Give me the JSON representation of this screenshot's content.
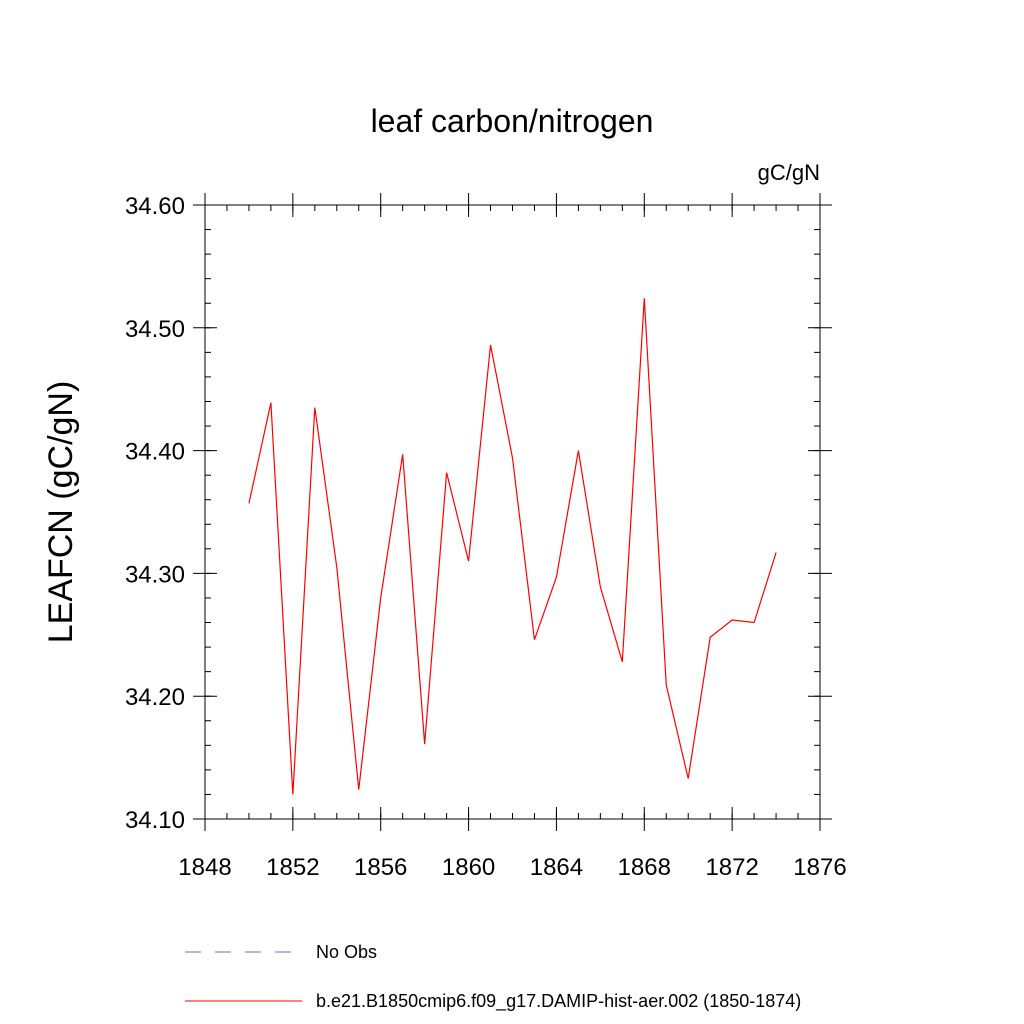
{
  "chart_data": {
    "type": "line",
    "title": "leaf carbon/nitrogen",
    "units": "gC/gN",
    "xlabel": "",
    "ylabel": "LEAFCN  (gC/gN)",
    "xlim": [
      1848,
      1876
    ],
    "ylim": [
      34.1,
      34.6
    ],
    "x_ticks": [
      "1848",
      "1852",
      "1856",
      "1860",
      "1864",
      "1868",
      "1872",
      "1876"
    ],
    "y_ticks": [
      "34.10",
      "34.20",
      "34.30",
      "34.40",
      "34.50",
      "34.60"
    ],
    "grid": false,
    "x": [
      1850,
      1851,
      1852,
      1853,
      1854,
      1855,
      1856,
      1857,
      1858,
      1859,
      1860,
      1861,
      1862,
      1863,
      1864,
      1865,
      1866,
      1867,
      1868,
      1869,
      1870,
      1871,
      1872,
      1873,
      1874
    ],
    "series": [
      {
        "name": "b.e21.B1850cmip6.f09_g17.DAMIP-hist-aer.002 (1850-1874)",
        "color": "#ff0000",
        "style": "solid",
        "values": [
          34.357,
          34.439,
          34.12,
          34.435,
          34.305,
          34.124,
          34.28,
          34.397,
          34.161,
          34.382,
          34.31,
          34.486,
          34.394,
          34.246,
          34.297,
          34.4,
          34.289,
          34.228,
          34.524,
          34.209,
          34.133,
          34.248,
          34.262,
          34.26,
          34.317
        ]
      }
    ],
    "legend": {
      "placement": "bottom",
      "entries": [
        {
          "label": "No Obs",
          "color": "#6b6bd6",
          "style": "dashed"
        },
        {
          "label": "b.e21.B1850cmip6.f09_g17.DAMIP-hist-aer.002 (1850-1874)",
          "color": "#ff0000",
          "style": "solid"
        }
      ]
    }
  }
}
